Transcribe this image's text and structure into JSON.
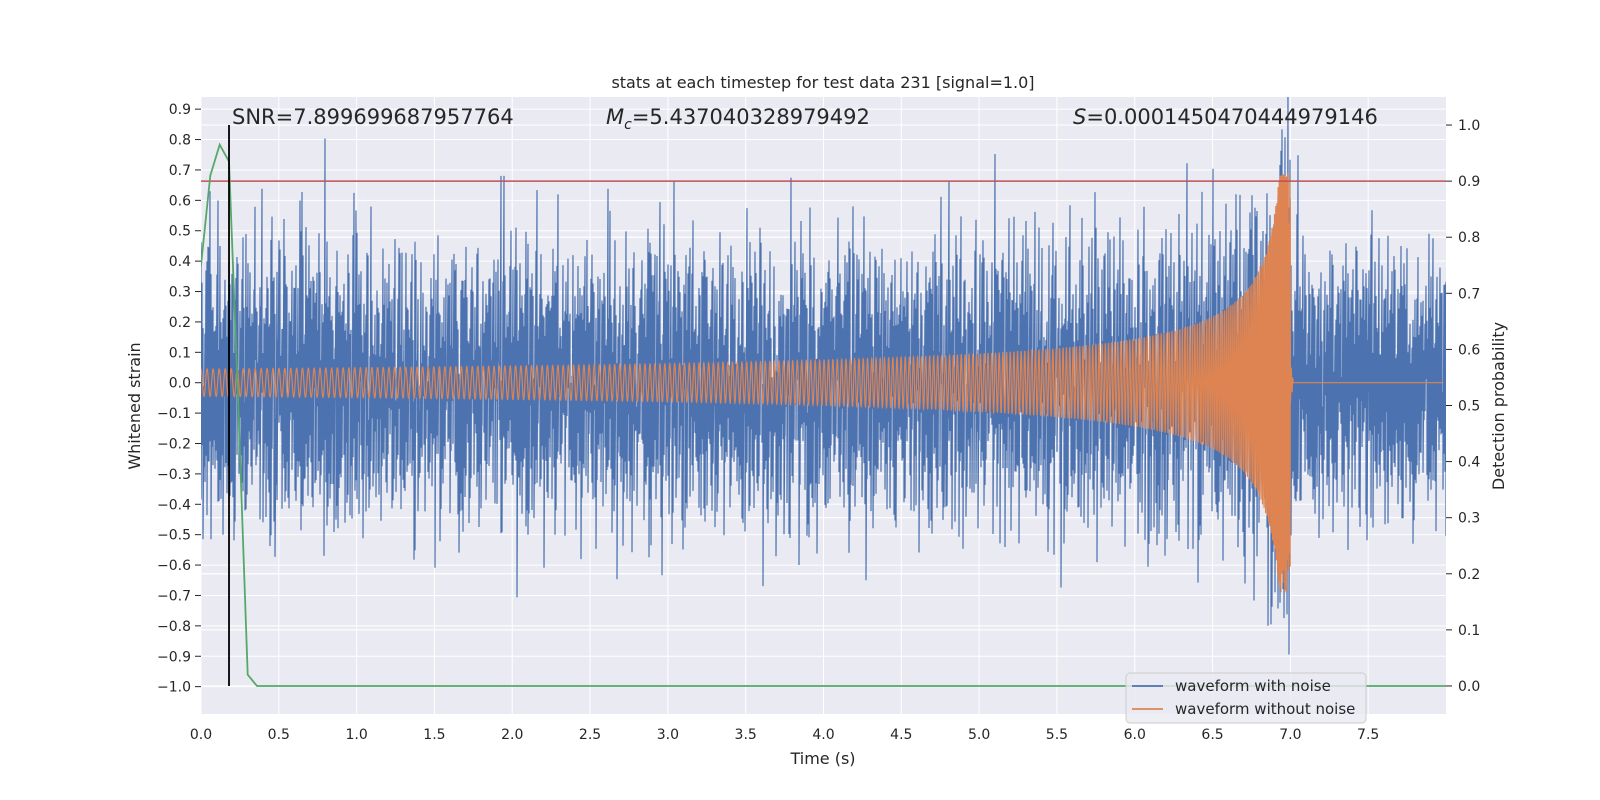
{
  "chart_data": {
    "type": "line",
    "title": "stats at each timestep for test data 231 [signal=1.0]",
    "xlabel": "Time (s)",
    "ylabel": "Whitened strain",
    "y2label": "Detection probability",
    "xlim": [
      0.0,
      8.0
    ],
    "ylim": [
      -1.09,
      0.94
    ],
    "y2lim": [
      -0.05,
      1.05
    ],
    "x_ticks": [
      "0.0",
      "0.5",
      "1.0",
      "1.5",
      "2.0",
      "2.5",
      "3.0",
      "3.5",
      "4.0",
      "4.5",
      "5.0",
      "5.5",
      "6.0",
      "6.5",
      "7.0",
      "7.5"
    ],
    "x_tick_values": [
      0.0,
      0.5,
      1.0,
      1.5,
      2.0,
      2.5,
      3.0,
      3.5,
      4.0,
      4.5,
      5.0,
      5.5,
      6.0,
      6.5,
      7.0,
      7.5
    ],
    "y_ticks": [
      "0.9",
      "0.8",
      "0.7",
      "0.6",
      "0.5",
      "0.4",
      "0.3",
      "0.2",
      "0.1",
      "0.0",
      "−0.1",
      "−0.2",
      "−0.3",
      "−0.4",
      "−0.5",
      "−0.6",
      "−0.7",
      "−0.8",
      "−0.9",
      "−1.0"
    ],
    "y_tick_values": [
      0.9,
      0.8,
      0.7,
      0.6,
      0.5,
      0.4,
      0.3,
      0.2,
      0.1,
      0.0,
      -0.1,
      -0.2,
      -0.3,
      -0.4,
      -0.5,
      -0.6,
      -0.7,
      -0.8,
      -0.9,
      -1.0
    ],
    "y2_ticks": [
      "1.0",
      "0.9",
      "0.8",
      "0.7",
      "0.6",
      "0.5",
      "0.4",
      "0.3",
      "0.2",
      "0.1",
      "0.0"
    ],
    "y2_tick_values": [
      1.0,
      0.9,
      0.8,
      0.7,
      0.6,
      0.5,
      0.4,
      0.3,
      0.2,
      0.1,
      0.0
    ],
    "annotations": {
      "snr": "SNR=7.899699687957764",
      "mc_symbol": "M",
      "mc_sub": "c",
      "mc_value": "=5.437040328979492",
      "s_symbol": "S",
      "s_value": "=0.0001450470444979146"
    },
    "threshold": {
      "value": 0.9,
      "axis": "y2",
      "color": "#c44e52"
    },
    "marker_line": {
      "x": 0.18,
      "color": "#000000"
    },
    "series": [
      {
        "name": "waveform with noise",
        "color": "#4c72b0",
        "noise_std": 0.21,
        "duration": 8.0,
        "merger_time": 7.0
      },
      {
        "name": "waveform without noise",
        "color": "#dd8452",
        "amplitude_start": 0.045,
        "amplitude_peak": 0.69,
        "f_start": 16,
        "f_end": 230,
        "merger_time": 7.0
      },
      {
        "name": "detection probability",
        "axis": "y2",
        "color": "#55a868",
        "x": [
          0.0,
          0.06,
          0.12,
          0.18,
          0.24,
          0.3,
          0.36,
          8.0
        ],
        "values": [
          0.75,
          0.91,
          0.965,
          0.935,
          0.5,
          0.02,
          0.0,
          0.0
        ]
      }
    ],
    "legend": {
      "position": "lower-right",
      "entries": [
        "waveform with noise",
        "waveform without noise"
      ]
    }
  }
}
